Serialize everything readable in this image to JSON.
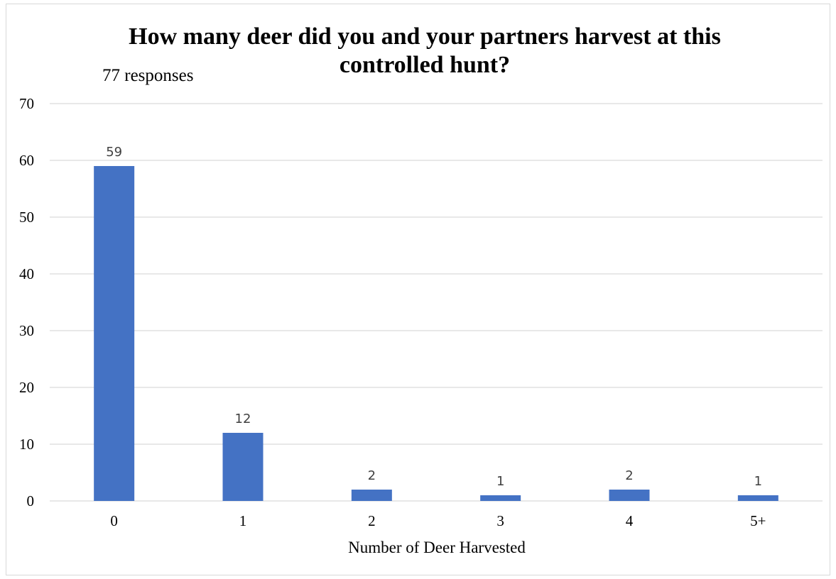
{
  "chart_data": {
    "type": "bar",
    "title_lines": [
      "How many deer did you and your partners harvest at this",
      "controlled hunt?"
    ],
    "subtitle": "77 responses",
    "categories": [
      "0",
      "1",
      "2",
      "3",
      "4",
      "5+"
    ],
    "values": [
      59,
      12,
      2,
      1,
      2,
      1
    ],
    "xlabel": "Number of Deer Harvested",
    "ylabel": "",
    "ylim": [
      0,
      70
    ],
    "yticks": [
      0,
      10,
      20,
      30,
      40,
      50,
      60,
      70
    ],
    "grid": true,
    "legend": "none",
    "bar_color": "#4472c4",
    "data_labels": true
  }
}
